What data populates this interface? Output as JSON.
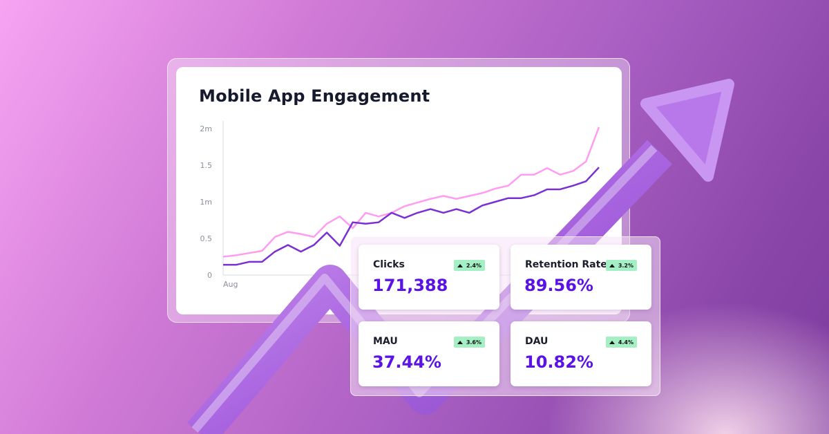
{
  "colors": {
    "series_light": "#ff9cf2",
    "series_dark": "#7a2fd2",
    "value_text": "#5b12e6",
    "badge_bg": "#a4efc4",
    "arrow": "#b474e6"
  },
  "chart_data": {
    "type": "line",
    "title": "Mobile App Engagement",
    "x_tick_labels": [
      "Aug"
    ],
    "y_tick_labels": [
      "0",
      "0.5",
      "1m",
      "1.5",
      "2m"
    ],
    "ylim": [
      0,
      2
    ],
    "grid": false,
    "series": [
      {
        "values": [
          0.25,
          0.27,
          0.3,
          0.33,
          0.52,
          0.59,
          0.56,
          0.52,
          0.7,
          0.8,
          0.64,
          0.85,
          0.8,
          0.85,
          0.94,
          0.99,
          1.04,
          1.08,
          1.04,
          1.08,
          1.12,
          1.18,
          1.22,
          1.37,
          1.37,
          1.46,
          1.37,
          1.42,
          1.55,
          2.02
        ]
      },
      {
        "values": [
          0.14,
          0.14,
          0.18,
          0.18,
          0.32,
          0.41,
          0.32,
          0.41,
          0.58,
          0.4,
          0.72,
          0.7,
          0.72,
          0.85,
          0.78,
          0.85,
          0.9,
          0.85,
          0.9,
          0.85,
          0.95,
          1.0,
          1.05,
          1.05,
          1.09,
          1.17,
          1.17,
          1.22,
          1.28,
          1.47
        ]
      }
    ]
  },
  "stats": [
    {
      "label": "Clicks",
      "value": "171,388",
      "change": "2.4%",
      "trend": "up"
    },
    {
      "label": "Retention Rate",
      "value": "89.56%",
      "change": "3.2%",
      "trend": "up"
    },
    {
      "label": "MAU",
      "value": "37.44%",
      "change": "3.6%",
      "trend": "up"
    },
    {
      "label": "DAU",
      "value": "10.82%",
      "change": "4.4%",
      "trend": "up"
    }
  ]
}
